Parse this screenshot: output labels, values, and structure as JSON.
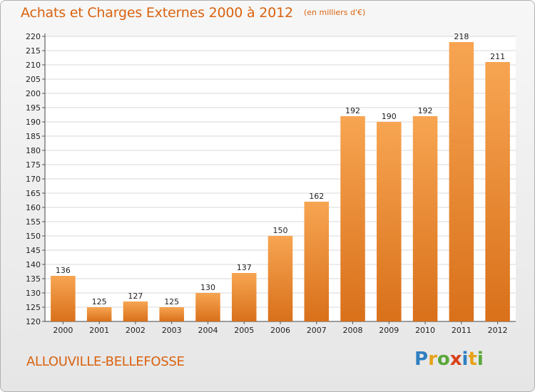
{
  "chart_data": {
    "type": "bar",
    "title": "Achats et Charges Externes 2000 à 2012",
    "subtitle": "(en milliers d'€)",
    "categories": [
      "2000",
      "2001",
      "2002",
      "2003",
      "2004",
      "2005",
      "2006",
      "2007",
      "2008",
      "2009",
      "2010",
      "2011",
      "2012"
    ],
    "values": [
      136,
      125,
      127,
      125,
      130,
      137,
      150,
      162,
      192,
      190,
      192,
      218,
      211
    ],
    "ylim": [
      120,
      220
    ],
    "yticks": [
      120,
      125,
      130,
      135,
      140,
      145,
      150,
      155,
      160,
      165,
      170,
      175,
      180,
      185,
      190,
      195,
      200,
      205,
      210,
      215,
      220
    ],
    "grid": true,
    "bar_color": "#f28c28",
    "bar_color_light": "#f7a552",
    "bar_color_dark": "#d9701a"
  },
  "footer": {
    "commune": "ALLOUVILLE-BELLEFOSSE"
  },
  "logo": {
    "letters": [
      {
        "ch": "P",
        "color": "#2f7fc1"
      },
      {
        "ch": "r",
        "color": "#e8a21a"
      },
      {
        "ch": "o",
        "color": "#5aa83a"
      },
      {
        "ch": "x",
        "color": "#d9401a"
      },
      {
        "ch": "i",
        "color": "#2f7fc1"
      },
      {
        "ch": "t",
        "color": "#e8a21a"
      },
      {
        "ch": "i",
        "color": "#5aa83a"
      }
    ]
  },
  "colors": {
    "accent": "#d9620f"
  }
}
